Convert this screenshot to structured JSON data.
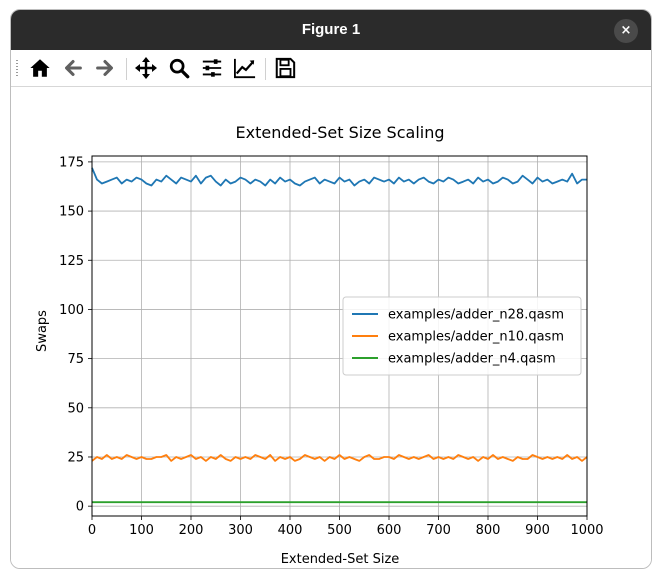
{
  "window": {
    "title": "Figure 1",
    "close_label": "×"
  },
  "toolbar": {
    "items": [
      {
        "name": "home-icon",
        "tooltip": "Home"
      },
      {
        "name": "back-arrow-icon",
        "tooltip": "Back"
      },
      {
        "name": "forward-arrow-icon",
        "tooltip": "Forward"
      },
      {
        "name": "pan-icon",
        "tooltip": "Pan"
      },
      {
        "name": "zoom-icon",
        "tooltip": "Zoom"
      },
      {
        "name": "subplots-icon",
        "tooltip": "Subplots"
      },
      {
        "name": "edit-curves-icon",
        "tooltip": "Customize"
      },
      {
        "name": "save-icon",
        "tooltip": "Save"
      }
    ]
  },
  "chart_data": {
    "type": "line",
    "title": "Extended-Set Size Scaling",
    "xlabel": "Extended-Set Size",
    "ylabel": "Swaps",
    "xlim": [
      0,
      1000
    ],
    "ylim": [
      -5,
      178
    ],
    "xticks": [
      0,
      100,
      200,
      300,
      400,
      500,
      600,
      700,
      800,
      900,
      1000
    ],
    "yticks": [
      0,
      25,
      50,
      75,
      100,
      125,
      150,
      175
    ],
    "grid": true,
    "legend_position": "center-right",
    "series": [
      {
        "name": "examples/adder_n28.qasm",
        "color": "#1f77b4",
        "x": [
          0,
          10,
          20,
          30,
          40,
          50,
          60,
          70,
          80,
          90,
          100,
          110,
          120,
          130,
          140,
          150,
          160,
          170,
          180,
          190,
          200,
          210,
          220,
          230,
          240,
          250,
          260,
          270,
          280,
          290,
          300,
          310,
          320,
          330,
          340,
          350,
          360,
          370,
          380,
          390,
          400,
          410,
          420,
          430,
          440,
          450,
          460,
          470,
          480,
          490,
          500,
          510,
          520,
          530,
          540,
          550,
          560,
          570,
          580,
          590,
          600,
          610,
          620,
          630,
          640,
          650,
          660,
          670,
          680,
          690,
          700,
          710,
          720,
          730,
          740,
          750,
          760,
          770,
          780,
          790,
          800,
          810,
          820,
          830,
          840,
          850,
          860,
          870,
          880,
          890,
          900,
          910,
          920,
          930,
          940,
          950,
          960,
          970,
          980,
          990,
          1000
        ],
        "y": [
          172,
          166,
          164,
          165,
          166,
          167,
          164,
          166,
          165,
          167,
          166,
          164,
          163,
          166,
          165,
          168,
          166,
          164,
          167,
          166,
          165,
          168,
          164,
          167,
          168,
          165,
          163,
          166,
          164,
          165,
          167,
          166,
          164,
          166,
          165,
          163,
          166,
          164,
          167,
          165,
          166,
          164,
          163,
          165,
          166,
          167,
          164,
          166,
          165,
          164,
          167,
          165,
          166,
          163,
          165,
          166,
          164,
          167,
          166,
          165,
          166,
          164,
          167,
          165,
          166,
          164,
          166,
          167,
          165,
          164,
          166,
          165,
          167,
          166,
          164,
          165,
          166,
          164,
          167,
          165,
          166,
          164,
          165,
          167,
          166,
          164,
          165,
          168,
          166,
          164,
          167,
          165,
          166,
          164,
          165,
          166,
          165,
          169,
          164,
          166,
          166
        ]
      },
      {
        "name": "examples/adder_n10.qasm",
        "color": "#ff7f0e",
        "x": [
          0,
          10,
          20,
          30,
          40,
          50,
          60,
          70,
          80,
          90,
          100,
          110,
          120,
          130,
          140,
          150,
          160,
          170,
          180,
          190,
          200,
          210,
          220,
          230,
          240,
          250,
          260,
          270,
          280,
          290,
          300,
          310,
          320,
          330,
          340,
          350,
          360,
          370,
          380,
          390,
          400,
          410,
          420,
          430,
          440,
          450,
          460,
          470,
          480,
          490,
          500,
          510,
          520,
          530,
          540,
          550,
          560,
          570,
          580,
          590,
          600,
          610,
          620,
          630,
          640,
          650,
          660,
          670,
          680,
          690,
          700,
          710,
          720,
          730,
          740,
          750,
          760,
          770,
          780,
          790,
          800,
          810,
          820,
          830,
          840,
          850,
          860,
          870,
          880,
          890,
          900,
          910,
          920,
          930,
          940,
          950,
          960,
          970,
          980,
          990,
          1000
        ],
        "y": [
          23,
          25,
          24,
          26,
          24,
          25,
          24,
          26,
          25,
          24,
          25,
          24,
          24,
          25,
          25,
          26,
          23,
          25,
          24,
          25,
          26,
          24,
          25,
          23,
          25,
          24,
          26,
          24,
          23,
          25,
          24,
          25,
          24,
          26,
          25,
          24,
          26,
          23,
          25,
          24,
          25,
          23,
          24,
          26,
          25,
          24,
          25,
          23,
          25,
          24,
          26,
          24,
          25,
          24,
          23,
          25,
          26,
          24,
          24,
          25,
          25,
          24,
          26,
          25,
          24,
          25,
          24,
          25,
          26,
          24,
          25,
          24,
          25,
          24,
          26,
          25,
          24,
          25,
          23,
          25,
          24,
          26,
          24,
          25,
          24,
          23,
          25,
          24,
          24,
          26,
          25,
          24,
          25,
          24,
          25,
          24,
          26,
          24,
          25,
          23,
          25
        ]
      },
      {
        "name": "examples/adder_n4.qasm",
        "color": "#2ca02c",
        "x": [
          0,
          1000
        ],
        "y": [
          2,
          2
        ]
      }
    ]
  }
}
